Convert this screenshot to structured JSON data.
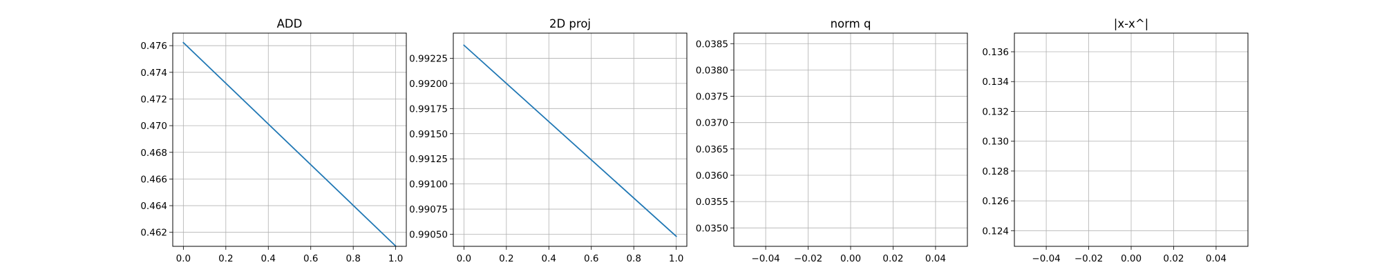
{
  "colors": {
    "series": "#1f77b4",
    "grid": "#b0b0b0",
    "axes": "#000000"
  },
  "chart_data": [
    {
      "type": "line",
      "title": "ADD",
      "xlim": [
        -0.05,
        1.05
      ],
      "ylim": [
        0.46095,
        0.47694
      ],
      "grid": true,
      "x_ticks": [
        0.0,
        0.2,
        0.4,
        0.6,
        0.8,
        1.0
      ],
      "x_tick_labels": [
        "0.0",
        "0.2",
        "0.4",
        "0.6",
        "0.8",
        "1.0"
      ],
      "y_ticks": [
        0.462,
        0.464,
        0.466,
        0.468,
        0.47,
        0.472,
        0.474,
        0.476
      ],
      "y_tick_labels": [
        "0.462",
        "0.464",
        "0.466",
        "0.468",
        "0.470",
        "0.472",
        "0.474",
        "0.476"
      ],
      "series": [
        {
          "x": [
            0.0,
            1.0
          ],
          "y": [
            0.47623,
            0.46097
          ]
        }
      ]
    },
    {
      "type": "line",
      "title": "2D proj",
      "xlim": [
        -0.05,
        1.05
      ],
      "ylim": [
        0.99038,
        0.9925
      ],
      "grid": true,
      "x_ticks": [
        0.0,
        0.2,
        0.4,
        0.6,
        0.8,
        1.0
      ],
      "x_tick_labels": [
        "0.0",
        "0.2",
        "0.4",
        "0.6",
        "0.8",
        "1.0"
      ],
      "y_ticks": [
        0.9905,
        0.99075,
        0.991,
        0.99125,
        0.9915,
        0.99175,
        0.992,
        0.99225
      ],
      "y_tick_labels": [
        "0.99050",
        "0.99075",
        "0.99100",
        "0.99125",
        "0.99150",
        "0.99175",
        "0.99200",
        "0.99225"
      ],
      "series": [
        {
          "x": [
            0.0,
            1.0
          ],
          "y": [
            0.99238,
            0.99048
          ]
        }
      ]
    },
    {
      "type": "line",
      "title": "norm q",
      "xlim": [
        -0.055,
        0.055
      ],
      "ylim": [
        0.03465,
        0.0387
      ],
      "grid": true,
      "x_ticks": [
        -0.04,
        -0.02,
        0.0,
        0.02,
        0.04
      ],
      "x_tick_labels": [
        "−0.04",
        "−0.02",
        "0.00",
        "0.02",
        "0.04"
      ],
      "y_ticks": [
        0.035,
        0.0355,
        0.036,
        0.0365,
        0.037,
        0.0375,
        0.038,
        0.0385
      ],
      "y_tick_labels": [
        "0.0350",
        "0.0355",
        "0.0360",
        "0.0365",
        "0.0370",
        "0.0375",
        "0.0380",
        "0.0385"
      ],
      "series": []
    },
    {
      "type": "line",
      "title": "|x-x^|",
      "xlim": [
        -0.055,
        0.055
      ],
      "ylim": [
        0.12295,
        0.13725
      ],
      "grid": true,
      "x_ticks": [
        -0.04,
        -0.02,
        0.0,
        0.02,
        0.04
      ],
      "x_tick_labels": [
        "−0.04",
        "−0.02",
        "0.00",
        "0.02",
        "0.04"
      ],
      "y_ticks": [
        0.124,
        0.126,
        0.128,
        0.13,
        0.132,
        0.134,
        0.136
      ],
      "y_tick_labels": [
        "0.124",
        "0.126",
        "0.128",
        "0.130",
        "0.132",
        "0.134",
        "0.136"
      ],
      "series": []
    }
  ]
}
